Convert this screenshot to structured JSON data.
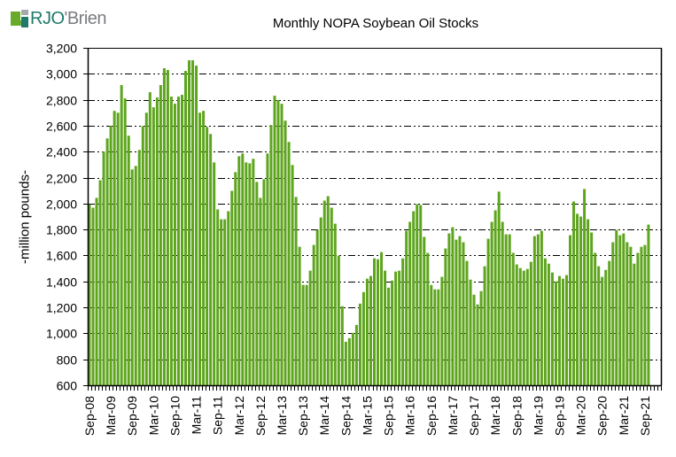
{
  "brand": {
    "logo_text_a": "RJO",
    "logo_text_b": "'Brien"
  },
  "colors": {
    "bar": "#5ea51e",
    "grid": "#000000",
    "logo_green": "#6aaa2a",
    "logo_teal": "#1f7a6a",
    "logo_gray": "#a7a9ac"
  },
  "chart_data": {
    "type": "bar",
    "title": "Monthly NOPA Soybean Oil Stocks",
    "xlabel": "",
    "ylabel": "-million pounds-",
    "ylim": [
      600,
      3200
    ],
    "y_ticks": [
      600,
      800,
      1000,
      1200,
      1400,
      1600,
      1800,
      2000,
      2200,
      2400,
      2600,
      2800,
      3000,
      3200
    ],
    "y_tick_labels": [
      "600",
      "800",
      "1,000",
      "1,200",
      "1,400",
      "1,600",
      "1,800",
      "2,000",
      "2,200",
      "2,400",
      "2,600",
      "2,800",
      "3,000",
      "3,200"
    ],
    "x_tick_labels": [
      "Sep-08",
      "Mar-09",
      "Sep-09",
      "Mar-10",
      "Sep-10",
      "Mar-11",
      "Sep-11",
      "Mar-12",
      "Sep-12",
      "Mar-13",
      "Sep-13",
      "Mar-14",
      "Sep-14",
      "Mar-15",
      "Sep-15",
      "Mar-16",
      "Sep-16",
      "Mar-17",
      "Sep-17",
      "Mar-18",
      "Sep-18",
      "Mar-19",
      "Sep-19",
      "Mar-20",
      "Sep-20",
      "Mar-21",
      "Sep-21"
    ],
    "x_tick_label_every_months": 6,
    "x_start": "Sep-08",
    "x_end": "Oct-21",
    "x_axis_slots": 161,
    "grid": true,
    "legend": "none",
    "series": [
      {
        "name": "Soybean Oil Stocks",
        "values": [
          1994,
          1968,
          2044,
          2180,
          2400,
          2502,
          2598,
          2714,
          2700,
          2913,
          2810,
          2523,
          2263,
          2290,
          2413,
          2598,
          2700,
          2858,
          2742,
          2817,
          2913,
          3043,
          3029,
          2824,
          2769,
          2824,
          2838,
          3022,
          3104,
          3104,
          3063,
          2700,
          2714,
          2591,
          2536,
          2317,
          1955,
          1879,
          1879,
          1941,
          2098,
          2242,
          2365,
          2386,
          2317,
          2310,
          2345,
          2167,
          2044,
          2187,
          2386,
          2605,
          2831,
          2797,
          2769,
          2639,
          2475,
          2297,
          2051,
          1667,
          1373,
          1373,
          1483,
          1681,
          1797,
          1893,
          2023,
          2057,
          1968,
          1845,
          1599,
          1209,
          935,
          963,
          1004,
          1065,
          1229,
          1318,
          1421,
          1442,
          1578,
          1571,
          1626,
          1483,
          1352,
          1407,
          1476,
          1483,
          1578,
          1790,
          1859,
          1941,
          1996,
          1989,
          1743,
          1620,
          1373,
          1339,
          1339,
          1435,
          1654,
          1770,
          1818,
          1722,
          1749,
          1702,
          1558,
          1414,
          1298,
          1223,
          1325,
          1517,
          1729,
          1859,
          1948,
          2092,
          1859,
          1763,
          1763,
          1620,
          1531,
          1503,
          1483,
          1496,
          1551,
          1749,
          1763,
          1790,
          1578,
          1537,
          1469,
          1400,
          1442,
          1421,
          1449,
          1756,
          2016,
          1921,
          1900,
          2112,
          1879,
          1777,
          1620,
          1517,
          1435,
          1489,
          1558,
          1702,
          1797,
          1756,
          1770,
          1702,
          1667,
          1537,
          1620,
          1667,
          1681,
          1838
        ]
      }
    ]
  }
}
